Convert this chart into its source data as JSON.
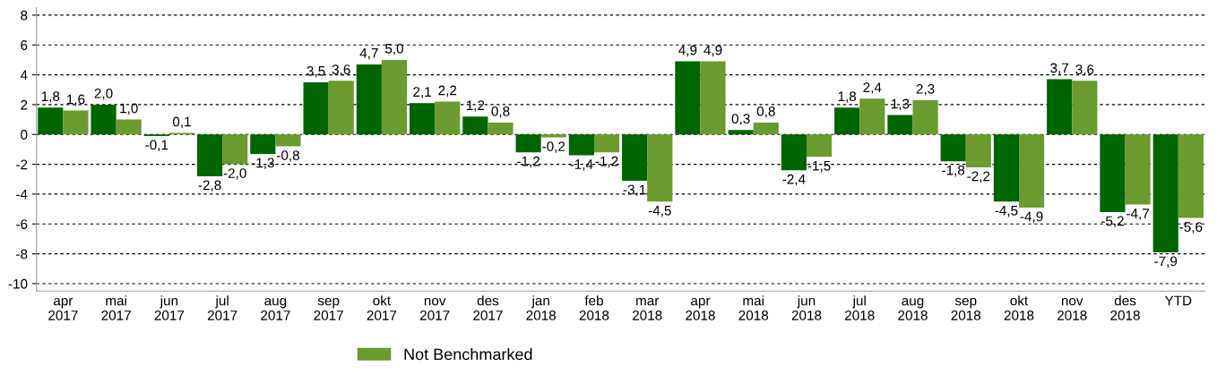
{
  "chart_data": {
    "type": "bar",
    "categories": [
      "apr\n2017",
      "mai\n2017",
      "jun\n2017",
      "jul\n2017",
      "aug\n2017",
      "sep\n2017",
      "okt\n2017",
      "nov\n2017",
      "des\n2017",
      "jan\n2018",
      "feb\n2018",
      "mar\n2018",
      "apr\n2018",
      "mai\n2018",
      "jun\n2018",
      "jul\n2018",
      "aug\n2018",
      "sep\n2018",
      "okt\n2018",
      "nov\n2018",
      "des\n2018",
      "YTD"
    ],
    "series": [
      {
        "color": "#006400",
        "values": [
          1.8,
          2.0,
          -0.1,
          -2.8,
          -1.3,
          3.5,
          4.7,
          2.1,
          1.2,
          -1.2,
          -1.4,
          -3.1,
          4.9,
          0.3,
          -2.4,
          1.8,
          1.3,
          -1.8,
          -4.5,
          3.7,
          -5.2,
          -7.9
        ],
        "value_labels": [
          "1,8",
          "2,0",
          "-0,1",
          "-2,8",
          "-1,3",
          "3,5",
          "4,7",
          "2,1",
          "1,2",
          "-1,2",
          "-1,4",
          "-3,1",
          "4,9",
          "0,3",
          "-2,4",
          "1,8",
          "1,3",
          "-1,8",
          "-4,5",
          "3,7",
          "-5,2",
          "-7,9"
        ]
      },
      {
        "name": "Not Benchmarked",
        "color": "#6b9a2e",
        "values": [
          1.6,
          1.0,
          0.1,
          -2.0,
          -0.8,
          3.6,
          5.0,
          2.2,
          0.8,
          -0.2,
          -1.2,
          -4.5,
          4.9,
          0.8,
          -1.5,
          2.4,
          2.3,
          -2.2,
          -4.9,
          3.6,
          -4.7,
          -5.6
        ],
        "value_labels": [
          "1,6",
          "1,0",
          "0,1",
          "-2,0",
          "-0,8",
          "3,6",
          "5,0",
          "2,2",
          "0,8",
          "-0,2",
          "-1,2",
          "-4,5",
          "4,9",
          "0,8",
          "-1,5",
          "2,4",
          "2,3",
          "-2,2",
          "-4,9",
          "3,6",
          "-4,7",
          "-5,6"
        ]
      }
    ],
    "ylim": [
      -10.5,
      8.5
    ],
    "yticks": [
      -10,
      -8,
      -6,
      -4,
      -2,
      0,
      2,
      4,
      6,
      8
    ],
    "grid": "y",
    "legend": "bottom"
  }
}
